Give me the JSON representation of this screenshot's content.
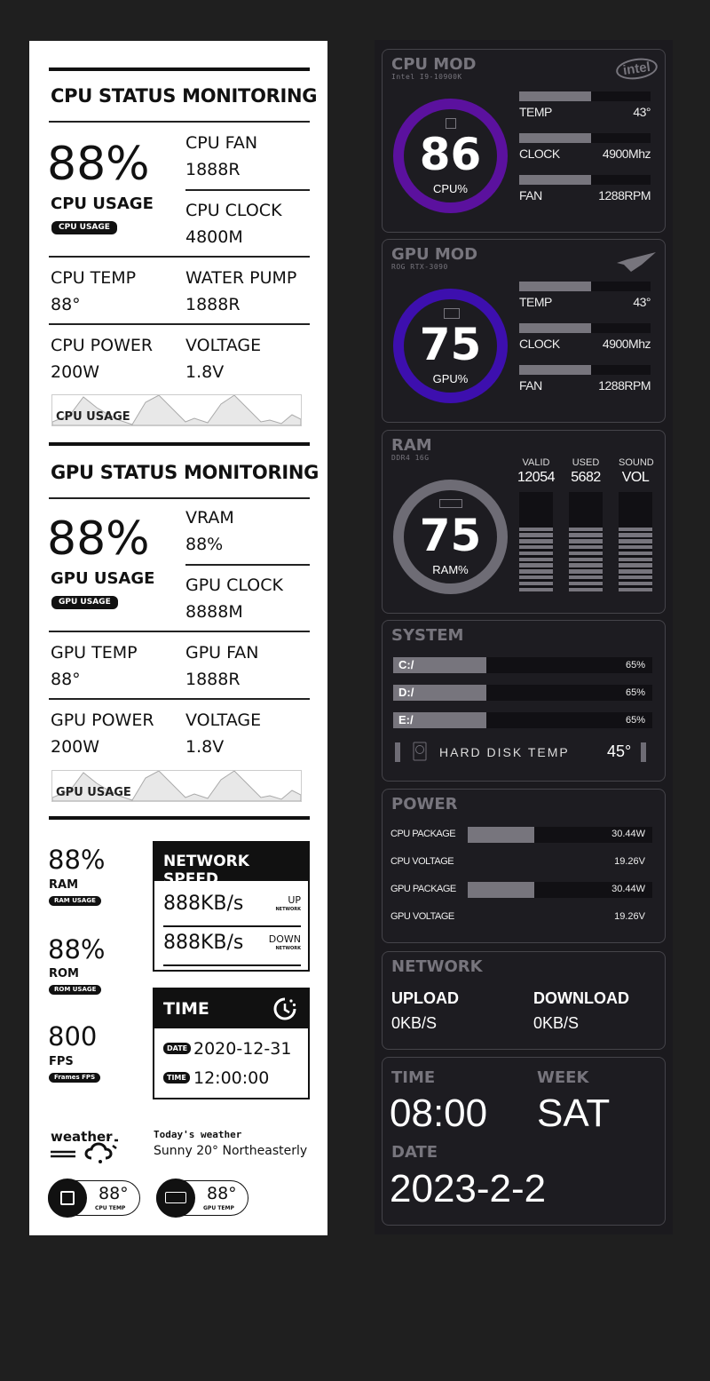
{
  "light_panel": {
    "cpu": {
      "title": "CPU STATUS MONITORING",
      "usage_value": "88%",
      "usage_label": "CPU USAGE",
      "usage_pill": "CPU USAGE",
      "fan_label": "CPU FAN",
      "fan_value": "1888R",
      "clock_label": "CPU CLOCK",
      "clock_value": "4800M",
      "temp_label": "CPU TEMP",
      "temp_value": "88°",
      "pump_label": "WATER PUMP",
      "pump_value": "1888R",
      "power_label": "CPU POWER",
      "power_value": "200W",
      "voltage_label": "VOLTAGE",
      "voltage_value": "1.8V",
      "graph_label": "CPU USAGE"
    },
    "gpu": {
      "title": "GPU STATUS MONITORING",
      "usage_value": "88%",
      "usage_label": "GPU USAGE",
      "usage_pill": "GPU USAGE",
      "vram_label": "VRAM",
      "vram_value": "88%",
      "clock_label": "GPU CLOCK",
      "clock_value": "8888M",
      "temp_label": "GPU TEMP",
      "temp_value": "88°",
      "fan_label": "GPU FAN",
      "fan_value": "1888R",
      "power_label": "GPU POWER",
      "power_value": "200W",
      "voltage_label": "VOLTAGE",
      "voltage_value": "1.8V",
      "graph_label": "GPU USAGE"
    },
    "stats": [
      {
        "value": "88%",
        "label": "RAM",
        "pill": "RAM USAGE"
      },
      {
        "value": "88%",
        "label": "ROM",
        "pill": "ROM USAGE"
      },
      {
        "value": "800",
        "label": "FPS",
        "pill": "Frames  FPS"
      }
    ],
    "network": {
      "title": "NETWORK SPEED",
      "up_value": "888KB/s",
      "up_label": "UP",
      "up_sub": "NETWORK",
      "down_value": "888KB/s",
      "down_label": "DOWN",
      "down_sub": "NETWORK"
    },
    "time": {
      "title": "TIME",
      "date_tag": "DATE",
      "date": "2020-12-31",
      "time_tag": "TIME",
      "time": "12:00:00"
    },
    "weather": {
      "logo": "weather",
      "heading": "Today's weather",
      "text": "Sunny 20° Northeasterly"
    },
    "temps": [
      {
        "value": "88°",
        "label": "CPU TEMP"
      },
      {
        "value": "88°",
        "label": "GPU TEMP"
      }
    ]
  },
  "dark_panel": {
    "colors": {
      "cpu_ring": "#5b119e",
      "gpu_ring": "#3d0fae",
      "ram_ring": "#6e6c75",
      "bar_fill": "#77757d",
      "bar_track": "#111014"
    },
    "cpu": {
      "title": "CPU MOD",
      "subtitle": "Intel I9-10900K",
      "brand": "intel",
      "value": "86",
      "unit": "CPU%",
      "percent": 86,
      "metrics": [
        {
          "label": "TEMP",
          "value": "43°",
          "fill": 0.55
        },
        {
          "label": "CLOCK",
          "value": "4900Mhz",
          "fill": 0.55
        },
        {
          "label": "FAN",
          "value": "1288RPM",
          "fill": 0.55
        }
      ]
    },
    "gpu": {
      "title": "GPU MOD",
      "subtitle": "ROG RTX-3090",
      "value": "75",
      "unit": "GPU%",
      "percent": 75,
      "metrics": [
        {
          "label": "TEMP",
          "value": "43°",
          "fill": 0.55
        },
        {
          "label": "CLOCK",
          "value": "4900Mhz",
          "fill": 0.55
        },
        {
          "label": "FAN",
          "value": "1288RPM",
          "fill": 0.55
        }
      ]
    },
    "ram": {
      "title": "RAM",
      "subtitle": "DDR4 16G",
      "value": "75",
      "unit": "RAM%",
      "columns": [
        {
          "label": "VALID",
          "value": "12054",
          "level": 0.55
        },
        {
          "label": "USED",
          "value": "5682",
          "level": 0.55
        },
        {
          "label": "SOUND",
          "value": "VOL",
          "level": 0.55
        }
      ]
    },
    "system": {
      "title": "SYSTEM",
      "drives": [
        {
          "label": "C:/",
          "value": "65%",
          "fill": 0.36
        },
        {
          "label": "D:/",
          "value": "65%",
          "fill": 0.36
        },
        {
          "label": "E:/",
          "value": "65%",
          "fill": 0.36
        }
      ],
      "disk_temp_label": "HARD DISK TEMP",
      "disk_temp_value": "45°"
    },
    "power": {
      "title": "POWER",
      "rows": [
        {
          "label": "CPU PACKAGE",
          "value": "30.44W",
          "fill": 0.36
        },
        {
          "label": "CPU VOLTAGE",
          "value": "19.26V"
        },
        {
          "label": "GPU PACKAGE",
          "value": "30.44W",
          "fill": 0.36
        },
        {
          "label": "GPU VOLTAGE",
          "value": "19.26V"
        }
      ]
    },
    "network": {
      "title": "NETWORK",
      "upload_label": "UPLOAD",
      "upload_value": "0KB/S",
      "download_label": "DOWNLOAD",
      "download_value": "0KB/S"
    },
    "time": {
      "time_label": "TIME",
      "time_value": "08:00",
      "week_label": "WEEK",
      "week_value": "SAT",
      "date_label": "DATE",
      "date_value": "2023-2-2"
    }
  }
}
